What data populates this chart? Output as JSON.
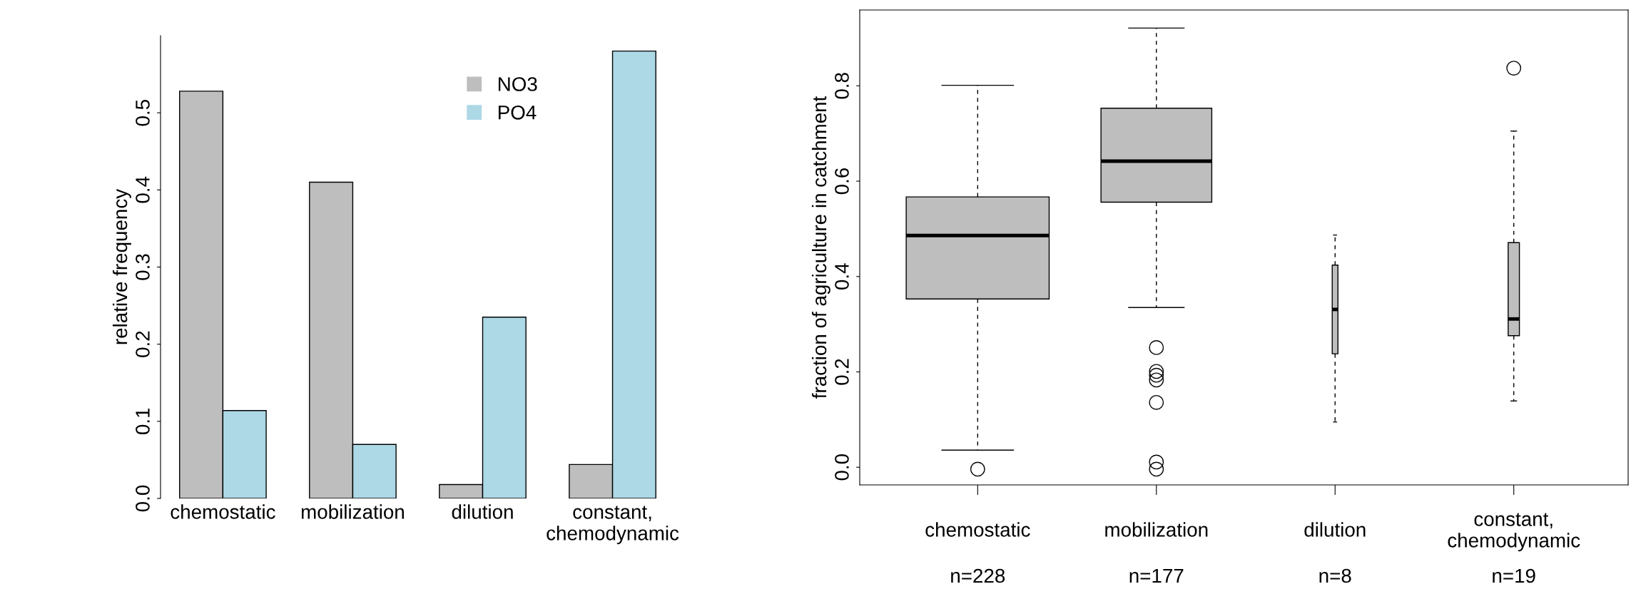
{
  "chart_data": [
    {
      "type": "bar",
      "ylabel": "relative frequency",
      "categories": [
        "chemostatic",
        "mobilization",
        "dilution",
        "constant,\nchemodynamic"
      ],
      "series": [
        {
          "name": "NO3",
          "color": "#bebebe",
          "values": [
            0.528,
            0.41,
            0.018,
            0.044
          ]
        },
        {
          "name": "PO4",
          "color": "#add8e6",
          "values": [
            0.114,
            0.07,
            0.235,
            0.58
          ]
        }
      ],
      "ylim": [
        0,
        0.6
      ],
      "yticks": [
        {
          "value": 0,
          "label": "0.0"
        },
        0.1,
        0.2,
        0.3,
        0.4,
        0.5
      ],
      "legend": "top right"
    },
    {
      "type": "box",
      "ylabel": "fraction of agriculture in catchment",
      "categories": [
        "chemostatic",
        "mobilization",
        "dilution",
        "constant,\nchemodynamic"
      ],
      "color": "#bebebe",
      "boxes": [
        {
          "low": 0.036,
          "q1": 0.353,
          "median": 0.486,
          "q3": 0.567,
          "high": 0.801,
          "outliers": [
            -0.004
          ]
        },
        {
          "low": 0.335,
          "q1": 0.556,
          "median": 0.642,
          "q3": 0.753,
          "high": 0.921,
          "outliers": [
            0.251,
            0.201,
            0.193,
            0.183,
            0.136,
            0.011,
            -0.004
          ]
        },
        {
          "low": 0.095,
          "q1": 0.238,
          "median": 0.331,
          "q3": 0.424,
          "high": 0.487
        },
        {
          "low": 0.139,
          "q1": 0.276,
          "median": 0.311,
          "q3": 0.471,
          "high": 0.705,
          "outliers": [
            0.837
          ]
        }
      ],
      "annotations": [
        "n=228",
        "n=177",
        "n=8",
        "n=19"
      ],
      "ylim": [
        -0.037,
        0.959
      ],
      "yticks": [
        {
          "value": 0,
          "label": "0.0"
        },
        0.2,
        0.4,
        0.6,
        0.8
      ]
    }
  ]
}
